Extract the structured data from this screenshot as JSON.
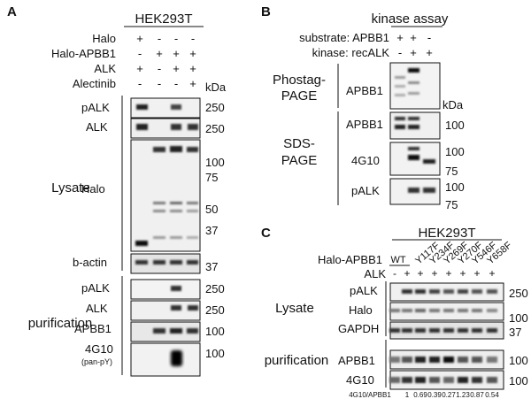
{
  "panels": {
    "A": {
      "letter": "A",
      "cell_line": "HEK293T",
      "conditions": [
        {
          "label": "Halo",
          "signs": [
            "+",
            "-",
            "-",
            "-"
          ]
        },
        {
          "label": "Halo-APBB1",
          "signs": [
            "-",
            "+",
            "+",
            "+"
          ]
        },
        {
          "label": "ALK",
          "signs": [
            "+",
            "-",
            "+",
            "+"
          ]
        },
        {
          "label": "Alectinib",
          "signs": [
            "-",
            "-",
            "-",
            "+"
          ]
        }
      ],
      "kda_header": "kDa",
      "groups": [
        "Lysate",
        "purification"
      ],
      "blots": [
        {
          "label": "pALK",
          "marker": "250"
        },
        {
          "label": "ALK",
          "marker": "250"
        },
        {
          "label": "Halo",
          "markers": [
            "100",
            "75",
            "50",
            "37"
          ]
        },
        {
          "label": "b-actin",
          "marker": "37"
        },
        {
          "label": "pALK",
          "marker": "250"
        },
        {
          "label": "ALK",
          "marker": "250"
        },
        {
          "label": "APBB1",
          "marker": "100"
        },
        {
          "label": "4G10",
          "sublabel": "(pan-pY)",
          "marker": "100"
        }
      ]
    },
    "B": {
      "letter": "B",
      "title": "kinase assay",
      "conditions": [
        {
          "label": "substrate: APBB1",
          "signs": [
            "+",
            "+",
            "-"
          ]
        },
        {
          "label": "kinase: recALK",
          "signs": [
            "-",
            "+",
            "+"
          ]
        }
      ],
      "groups": [
        {
          "line1": "Phostag-",
          "line2": "PAGE"
        },
        {
          "line1": "SDS-",
          "line2": "PAGE"
        }
      ],
      "kda_header": "kDa",
      "blots": [
        {
          "label": "APBB1"
        },
        {
          "label": "APBB1",
          "marker": "100"
        },
        {
          "label": "4G10",
          "markers": [
            "100",
            "75"
          ]
        },
        {
          "label": "pALK",
          "markers": [
            "100",
            "75"
          ]
        }
      ]
    },
    "C": {
      "letter": "C",
      "cell_line": "HEK293T",
      "construct_label": "Halo-APBB1",
      "alk_label": "ALK",
      "wt_label": "WT",
      "mutants": [
        "Y117F",
        "Y234F",
        "Y269F",
        "Y270F",
        "Y546F",
        "Y658F"
      ],
      "alk_signs": [
        "-",
        "+",
        "+",
        "+",
        "+",
        "+",
        "+",
        "+"
      ],
      "groups": [
        "Lysate",
        "purification"
      ],
      "blots": [
        {
          "label": "pALK",
          "marker": "250"
        },
        {
          "label": "Halo",
          "marker": "100"
        },
        {
          "label": "GAPDH",
          "marker": "37"
        },
        {
          "label": "APBB1",
          "marker": "100"
        },
        {
          "label": "4G10",
          "marker": "100"
        }
      ],
      "ratio_label": "4G10/APBB1",
      "ratios": [
        "1",
        "0.69",
        "0.39",
        "0.27",
        "1.23",
        "0.87",
        "0.54"
      ]
    }
  }
}
